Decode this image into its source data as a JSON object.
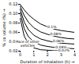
{
  "chart_data": {
    "type": "line",
    "xlabel": "Duration of inhalation (h)",
    "ylabel": "% co volume (%)",
    "x": [
      0.0,
      0.3,
      0.6,
      1.0,
      1.5,
      2.0,
      2.5,
      3.0,
      3.5,
      4.0
    ],
    "series": [
      {
        "name": "0.1%",
        "values": [
          0.12,
          0.108,
          0.098,
          0.088,
          0.078,
          0.072,
          0.067,
          0.064,
          0.062,
          0.06
        ],
        "label_x": 2.0,
        "label_y": 0.072
      },
      {
        "name": "0.08%",
        "values": [
          0.116,
          0.096,
          0.082,
          0.07,
          0.061,
          0.056,
          0.052,
          0.049,
          0.047,
          0.046
        ],
        "label_x": 2.2,
        "label_y": 0.056
      },
      {
        "name": "0.06%",
        "values": [
          0.11,
          0.082,
          0.066,
          0.054,
          0.046,
          0.042,
          0.039,
          0.037,
          0.036,
          0.035
        ],
        "label_x": 2.4,
        "label_y": 0.041
      },
      {
        "name": "0.04%",
        "values": [
          0.102,
          0.068,
          0.051,
          0.04,
          0.033,
          0.03,
          0.028,
          0.027,
          0.026,
          0.025
        ],
        "label_x": 2.6,
        "label_y": 0.029
      },
      {
        "name": "0.02%",
        "values": [
          0.09,
          0.052,
          0.036,
          0.027,
          0.023,
          0.022,
          0.021,
          0.021,
          0.02,
          0.02
        ],
        "label_x": 2.8,
        "label_y": 0.021
      }
    ],
    "xlim": [
      0,
      4
    ],
    "ylim": [
      0.02,
      0.12
    ],
    "xticks": [
      0,
      1,
      2,
      3,
      4
    ],
    "yticks": [
      0.02,
      0.04,
      0.06,
      0.08,
      {
        "value": 0.1,
        "label": "0.10"
      },
      0.12
    ],
    "annotations": [
      {
        "text": "Pace of other\nvehicles",
        "x": 0.55,
        "y": 0.03
      }
    ]
  }
}
